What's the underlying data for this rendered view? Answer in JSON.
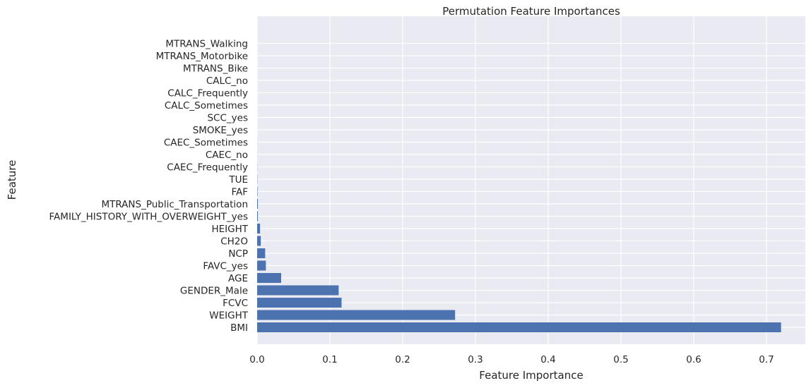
{
  "chart_data": {
    "type": "bar",
    "orientation": "horizontal",
    "title": "Permutation Feature Importances",
    "xlabel": "Feature Importance",
    "ylabel": "Feature",
    "xlim": [
      0,
      0.75
    ],
    "xticks": [
      0.0,
      0.1,
      0.2,
      0.3,
      0.4,
      0.5,
      0.6,
      0.7
    ],
    "xtick_labels": [
      "0.0",
      "0.1",
      "0.2",
      "0.3",
      "0.4",
      "0.5",
      "0.6",
      "0.7"
    ],
    "grid": true,
    "style": "seaborn-darkgrid",
    "bar_color": "#4c72b0",
    "background_color": "#eaeaf2",
    "categories": [
      "BMI",
      "WEIGHT",
      "FCVC",
      "GENDER_Male",
      "AGE",
      "FAVC_yes",
      "NCP",
      "CH2O",
      "HEIGHT",
      "FAMILY_HISTORY_WITH_OVERWEIGHT_yes",
      "MTRANS_Public_Transportation",
      "FAF",
      "TUE",
      "CAEC_Frequently",
      "CAEC_no",
      "CAEC_Sometimes",
      "SMOKE_yes",
      "SCC_yes",
      "CALC_Sometimes",
      "CALC_Frequently",
      "CALC_no",
      "MTRANS_Bike",
      "MTRANS_Motorbike",
      "MTRANS_Walking"
    ],
    "values": [
      0.72,
      0.272,
      0.116,
      0.112,
      0.033,
      0.012,
      0.011,
      0.005,
      0.004,
      0.001,
      0.001,
      0.0005,
      0.0003,
      0.0002,
      0.0001,
      0.0001,
      0,
      0,
      0,
      0,
      0,
      0,
      0,
      0
    ]
  }
}
